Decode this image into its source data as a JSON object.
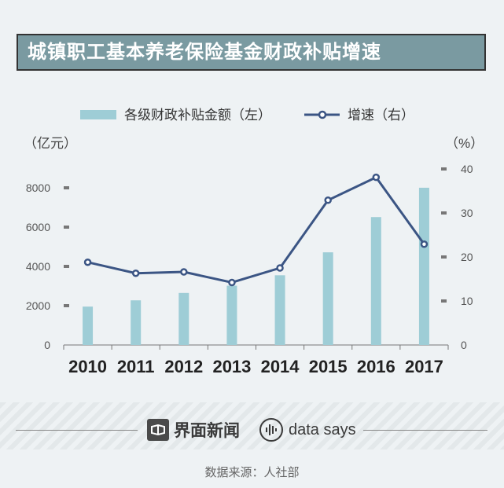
{
  "title": "城镇职工基本养老保险基金财政补贴增速",
  "footer": {
    "brand": "界面新闻",
    "brand2": "data says",
    "source": "数据来源：人社部"
  },
  "colors": {
    "bar": "#9ecdd6",
    "line": "#3b5584",
    "title_bg": "#7a9aa1"
  },
  "chart_data": {
    "type": "bar+line",
    "categories": [
      "2010",
      "2011",
      "2012",
      "2013",
      "2014",
      "2015",
      "2016",
      "2017"
    ],
    "series": [
      {
        "name": "各级财政补贴金额（左）",
        "kind": "bar",
        "axis": "left",
        "values": [
          1954,
          2272,
          2648,
          3019,
          3548,
          4716,
          6511,
          8004
        ]
      },
      {
        "name": "增速（右）",
        "kind": "line",
        "axis": "right",
        "values": [
          18.8,
          16.3,
          16.6,
          14.2,
          17.5,
          32.9,
          38.1,
          22.9
        ]
      }
    ],
    "left_axis": {
      "unit": "（亿元）",
      "ticks": [
        "0",
        "2000",
        "4000",
        "6000",
        "8000"
      ],
      "ylim": [
        0,
        9000
      ]
    },
    "right_axis": {
      "unit": "（%）",
      "ticks": [
        "0",
        "10",
        "20",
        "30",
        "40"
      ],
      "ylim": [
        0,
        40
      ]
    },
    "legend_position": "top-center"
  }
}
